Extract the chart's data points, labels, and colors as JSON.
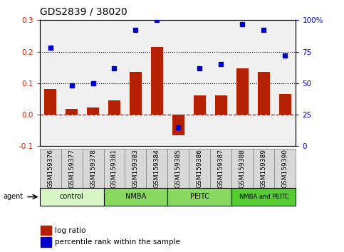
{
  "title": "GDS2839 / 38020",
  "samples": [
    "GSM159376",
    "GSM159377",
    "GSM159378",
    "GSM159381",
    "GSM159383",
    "GSM159384",
    "GSM159385",
    "GSM159386",
    "GSM159387",
    "GSM159388",
    "GSM159389",
    "GSM159390"
  ],
  "log_ratio": [
    0.082,
    0.018,
    0.022,
    0.045,
    0.135,
    0.215,
    -0.065,
    0.062,
    0.062,
    0.148,
    0.135,
    0.065
  ],
  "percentile_pct": [
    78,
    48,
    50,
    62,
    92,
    100,
    15,
    62,
    65,
    97,
    92,
    72
  ],
  "groups": [
    {
      "label": "control",
      "start": 0,
      "end": 3,
      "color": "#d8f5c8"
    },
    {
      "label": "NMBA",
      "start": 3,
      "end": 6,
      "color": "#88d860"
    },
    {
      "label": "PEITC",
      "start": 6,
      "end": 9,
      "color": "#88d860"
    },
    {
      "label": "NMBA and PEITC",
      "start": 9,
      "end": 12,
      "color": "#55cc30"
    }
  ],
  "sample_box_color": "#d8d8d8",
  "bar_color": "#b52000",
  "dot_color": "#0000cc",
  "ylim_left": [
    -0.1,
    0.3
  ],
  "ylim_right": [
    0,
    100
  ],
  "yticks_left": [
    -0.1,
    0.0,
    0.1,
    0.2,
    0.3
  ],
  "yticks_right": [
    0,
    25,
    50,
    75,
    100
  ],
  "hlines": [
    0.1,
    0.2
  ],
  "hline_zero_color": "#cc0000",
  "plot_bg": "#f0f0f0",
  "title_fontsize": 10
}
